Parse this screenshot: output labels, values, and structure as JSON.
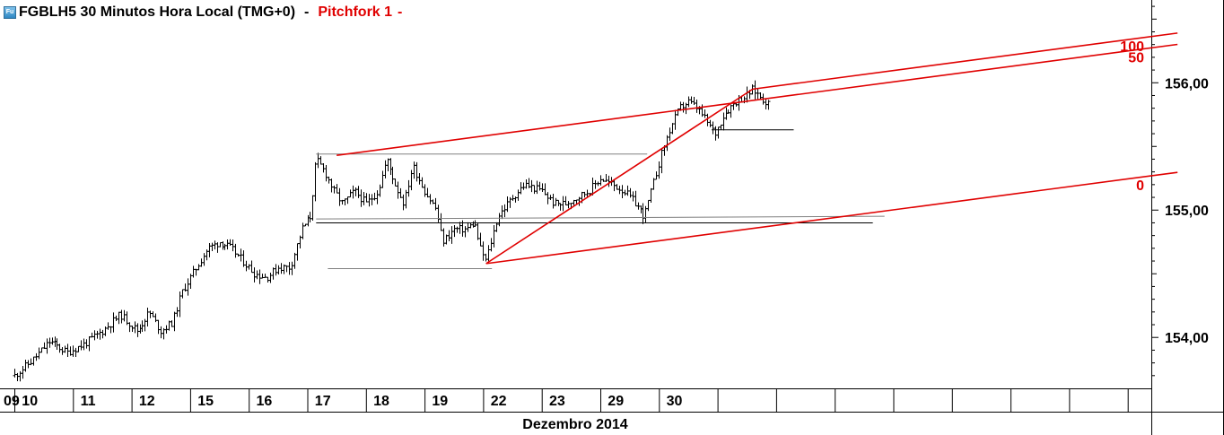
{
  "header": {
    "instrument": "FGBLH5 30 Minutos Hora Local (TMG+0)",
    "separator": "-",
    "study": "Pitchfork 1",
    "study_suffix": "-",
    "icon": "chart-app-icon"
  },
  "colors": {
    "background": "#ffffff",
    "price_bars": "#000000",
    "pitchfork": "#e00000",
    "level_lines": "#808080",
    "grid": "#000000"
  },
  "chart_data": {
    "type": "ohlc-bar",
    "title": "FGBLH5 30 Minutos Hora Local (TMG+0)",
    "x_axis_label": "Dezembro 2014",
    "x_ticks": [
      "09",
      "10",
      "11",
      "12",
      "15",
      "16",
      "17",
      "18",
      "19",
      "22",
      "23",
      "29",
      "30",
      "",
      "",
      "",
      "",
      "",
      "",
      ""
    ],
    "y_ticks": [
      "154,00",
      "155,00",
      "156,00"
    ],
    "y_range": [
      153.6,
      156.65
    ],
    "pitchfork": {
      "name": "Pitchfork 1",
      "levels": [
        "100",
        "50",
        "0"
      ],
      "pivot_a": {
        "session": 8.05,
        "price": 154.58
      },
      "pivot_b": {
        "session": 12.6,
        "price": 155.95
      },
      "pivot_c": {
        "session": 5.5,
        "price": 155.43
      },
      "end_session": 19.85
    },
    "close_path": [
      [
        0.0,
        153.7
      ],
      [
        0.3,
        153.82
      ],
      [
        0.6,
        153.97
      ],
      [
        0.9,
        153.88
      ],
      [
        1.2,
        153.95
      ],
      [
        1.5,
        154.05
      ],
      [
        1.8,
        154.18
      ],
      [
        2.1,
        154.05
      ],
      [
        2.3,
        154.2
      ],
      [
        2.5,
        154.05
      ],
      [
        2.7,
        154.12
      ],
      [
        2.85,
        154.35
      ],
      [
        3.1,
        154.55
      ],
      [
        3.3,
        154.7
      ],
      [
        3.5,
        154.75
      ],
      [
        3.7,
        154.7
      ],
      [
        3.9,
        154.6
      ],
      [
        4.1,
        154.5
      ],
      [
        4.3,
        154.47
      ],
      [
        4.5,
        154.55
      ],
      [
        4.7,
        154.55
      ],
      [
        4.9,
        154.85
      ],
      [
        5.05,
        154.95
      ],
      [
        5.15,
        155.4
      ],
      [
        5.3,
        155.3
      ],
      [
        5.45,
        155.15
      ],
      [
        5.6,
        155.05
      ],
      [
        5.8,
        155.15
      ],
      [
        6.0,
        155.05
      ],
      [
        6.2,
        155.15
      ],
      [
        6.35,
        155.4
      ],
      [
        6.5,
        155.2
      ],
      [
        6.65,
        155.05
      ],
      [
        6.8,
        155.35
      ],
      [
        7.0,
        155.15
      ],
      [
        7.2,
        155.0
      ],
      [
        7.3,
        154.75
      ],
      [
        7.5,
        154.85
      ],
      [
        7.7,
        154.85
      ],
      [
        7.85,
        154.9
      ],
      [
        7.95,
        154.7
      ],
      [
        8.05,
        154.6
      ],
      [
        8.25,
        154.95
      ],
      [
        8.5,
        155.1
      ],
      [
        8.7,
        155.2
      ],
      [
        9.0,
        155.15
      ],
      [
        9.2,
        155.05
      ],
      [
        9.4,
        155.05
      ],
      [
        9.6,
        155.1
      ],
      [
        9.8,
        155.15
      ],
      [
        10.0,
        155.25
      ],
      [
        10.2,
        155.2
      ],
      [
        10.4,
        155.15
      ],
      [
        10.6,
        155.05
      ],
      [
        10.75,
        154.95
      ],
      [
        10.9,
        155.2
      ],
      [
        11.05,
        155.45
      ],
      [
        11.2,
        155.65
      ],
      [
        11.35,
        155.8
      ],
      [
        11.5,
        155.85
      ],
      [
        11.65,
        155.8
      ],
      [
        11.8,
        155.7
      ],
      [
        11.95,
        155.6
      ],
      [
        12.1,
        155.75
      ],
      [
        12.3,
        155.85
      ],
      [
        12.5,
        155.9
      ],
      [
        12.6,
        155.95
      ],
      [
        12.75,
        155.88
      ],
      [
        12.9,
        155.82
      ]
    ],
    "horizontal_lines": [
      {
        "from": 5.15,
        "to": 10.8,
        "price": 155.44
      },
      {
        "from": 5.15,
        "to": 14.85,
        "price": 154.93
      },
      {
        "from": 5.15,
        "to": 14.65,
        "price": 154.9
      },
      {
        "from": 5.35,
        "to": 8.15,
        "price": 154.54
      },
      {
        "from": 11.9,
        "to": 13.3,
        "price": 155.63
      }
    ]
  }
}
